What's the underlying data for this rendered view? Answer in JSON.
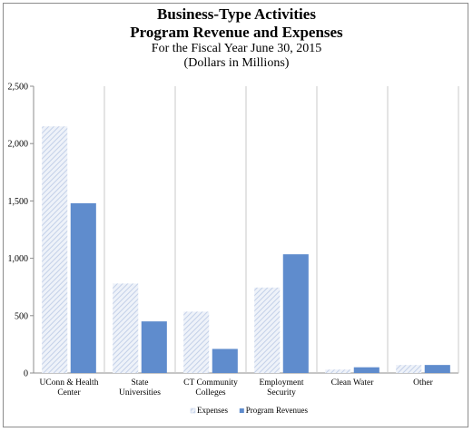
{
  "chart_data": {
    "type": "bar",
    "title": "Business-Type Activities",
    "title_line2": "Program Revenue and Expenses",
    "subtitle": "For the Fiscal Year June 30, 2015",
    "subtitle_line2": "(Dollars in Millions)",
    "categories": [
      [
        "UConn & Health",
        "Center"
      ],
      [
        "State",
        "Universities"
      ],
      [
        "CT Community",
        "Colleges"
      ],
      [
        "Employment",
        "Security"
      ],
      [
        "Clean Water"
      ],
      [
        "Other"
      ]
    ],
    "series": [
      {
        "name": "Expenses",
        "values": [
          2150,
          780,
          535,
          745,
          30,
          70
        ],
        "color": "#d6dff0",
        "pattern": "diagonal-hatch"
      },
      {
        "name": "Program Revenues",
        "values": [
          1480,
          450,
          210,
          1035,
          50,
          70
        ],
        "color": "#5f8ccd"
      }
    ],
    "ylim": [
      0,
      2500
    ],
    "yticks": [
      0,
      500,
      1000,
      1500,
      2000,
      2500
    ],
    "ytick_labels": [
      "0",
      "500",
      "1,000",
      "1,500",
      "2,000",
      "2,500"
    ],
    "grid": "vertical category separators",
    "legend_position": "bottom"
  }
}
